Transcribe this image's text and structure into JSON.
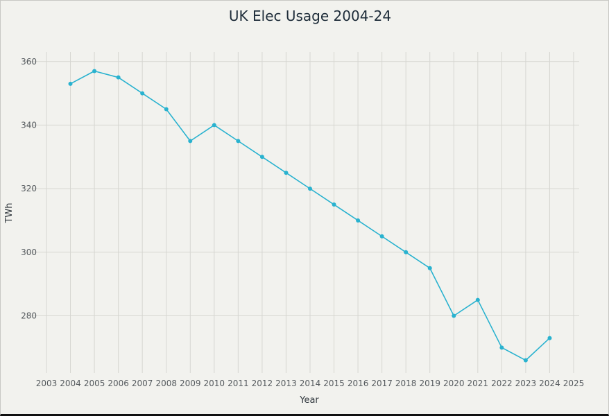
{
  "chart_data": {
    "type": "line",
    "title": "UK Elec Usage 2004-24",
    "xlabel": "Year",
    "ylabel": "TWh",
    "xlim": [
      2003,
      2025
    ],
    "ylim": [
      262,
      363
    ],
    "x_ticks": [
      2003,
      2004,
      2005,
      2006,
      2007,
      2008,
      2009,
      2010,
      2011,
      2012,
      2013,
      2014,
      2015,
      2016,
      2017,
      2018,
      2019,
      2020,
      2021,
      2022,
      2023,
      2024,
      2025
    ],
    "y_ticks": [
      280,
      300,
      320,
      340,
      360
    ],
    "grid": true,
    "line_color": "#29b2cf",
    "series": [
      {
        "x": [
          2004,
          2005,
          2006,
          2007,
          2008,
          2009,
          2010,
          2011,
          2012,
          2013,
          2014,
          2015,
          2016,
          2017,
          2018,
          2019,
          2020,
          2021,
          2022,
          2023,
          2024
        ],
        "values": [
          353,
          357,
          355,
          350,
          345,
          335,
          340,
          335,
          330,
          325,
          320,
          315,
          310,
          305,
          300,
          295,
          280,
          285,
          270,
          266,
          273
        ]
      }
    ]
  }
}
